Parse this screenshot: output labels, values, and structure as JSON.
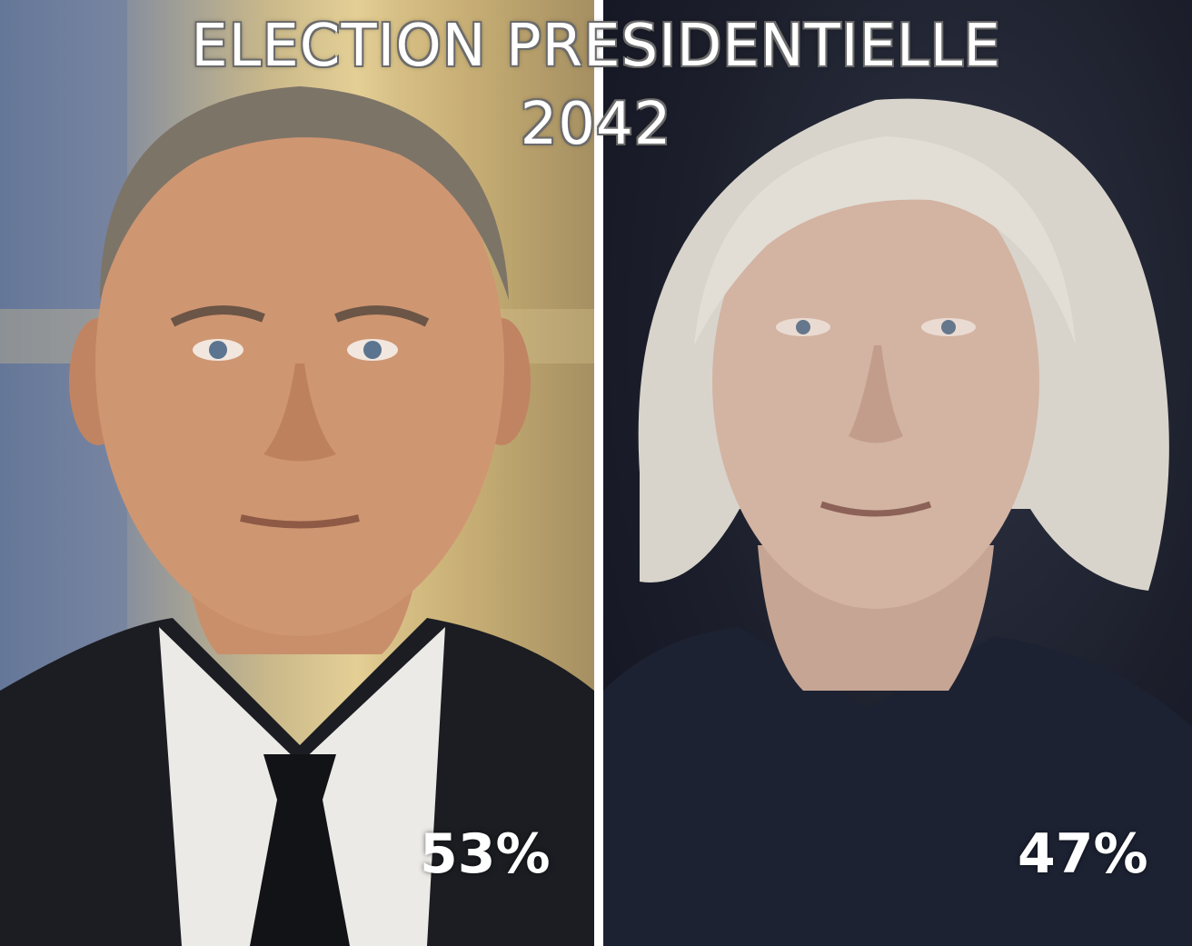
{
  "title": {
    "line1": "ELECTION PRESIDENTIELLE",
    "line2": "2042"
  },
  "candidates": [
    {
      "side": "left",
      "percentage": "53%",
      "photo": "older-man-in-dark-suit-portrait"
    },
    {
      "side": "right",
      "percentage": "47%",
      "photo": "older-woman-with-white-hair-portrait"
    }
  ]
}
